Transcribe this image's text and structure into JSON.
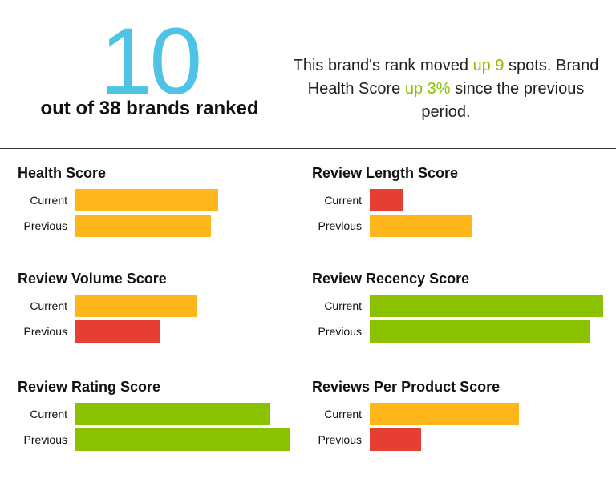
{
  "header": {
    "rank": "10",
    "rank_caption": "out of 38 brands ranked",
    "summary_parts": [
      "This brand's rank moved ",
      "up 9",
      " spots. Brand Health Score ",
      "up 3%",
      " since the previous period."
    ]
  },
  "colors": {
    "rank": "#4fc3e6",
    "highlight": "#8ac100",
    "green": "#8ac100",
    "yellow": "#ffb61a",
    "red": "#e53e33"
  },
  "chart_data": [
    {
      "type": "bar",
      "title": "Health Score",
      "categories": [
        "Current",
        "Previous"
      ],
      "values": [
        0.61,
        0.58
      ],
      "colors": [
        "#ffb61a",
        "#ffb61a"
      ],
      "xlim": [
        0,
        1
      ]
    },
    {
      "type": "bar",
      "title": "Review Length Score",
      "categories": [
        "Current",
        "Previous"
      ],
      "values": [
        0.14,
        0.44
      ],
      "colors": [
        "#e53e33",
        "#ffb61a"
      ],
      "xlim": [
        0,
        1
      ]
    },
    {
      "type": "bar",
      "title": "Review Volume Score",
      "categories": [
        "Current",
        "Previous"
      ],
      "values": [
        0.52,
        0.36
      ],
      "colors": [
        "#ffb61a",
        "#e53e33"
      ],
      "xlim": [
        0,
        1
      ]
    },
    {
      "type": "bar",
      "title": "Review Recency Score",
      "categories": [
        "Current",
        "Previous"
      ],
      "values": [
        1.0,
        0.94
      ],
      "colors": [
        "#8ac100",
        "#8ac100"
      ],
      "xlim": [
        0,
        1
      ]
    },
    {
      "type": "bar",
      "title": "Review Rating Score",
      "categories": [
        "Current",
        "Previous"
      ],
      "values": [
        0.83,
        0.92
      ],
      "colors": [
        "#8ac100",
        "#8ac100"
      ],
      "xlim": [
        0,
        1
      ]
    },
    {
      "type": "bar",
      "title": "Reviews Per Product Score",
      "categories": [
        "Current",
        "Previous"
      ],
      "values": [
        0.64,
        0.22
      ],
      "colors": [
        "#ffb61a",
        "#e53e33"
      ],
      "xlim": [
        0,
        1
      ]
    }
  ]
}
